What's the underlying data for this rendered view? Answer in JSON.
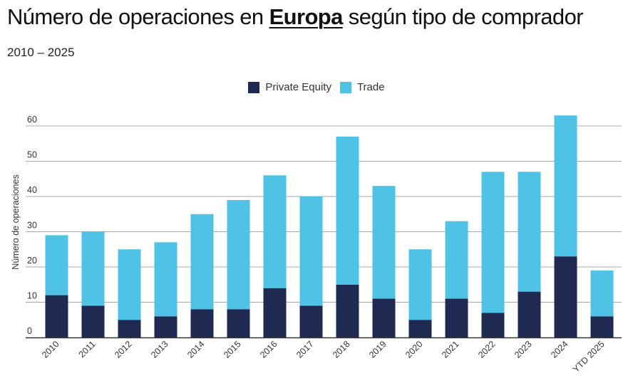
{
  "header": {
    "title_pre": "Número de operaciones en ",
    "title_highlight": "Europa",
    "title_post": " según tipo de comprador",
    "subtitle": "2010 – 2025"
  },
  "colors": {
    "private_equity": "#1f2a52",
    "trade": "#4fc3e6",
    "grid": "#a8a8a8",
    "axis": "#333333"
  },
  "chart_data": {
    "type": "bar",
    "stacked": true,
    "categories": [
      "2010",
      "2011",
      "2012",
      "2013",
      "2014",
      "2015",
      "2016",
      "2017",
      "2018",
      "2019",
      "2020",
      "2021",
      "2022",
      "2023",
      "2024",
      "YTD 2025"
    ],
    "series": [
      {
        "name": "Private Equity",
        "values": [
          12,
          9,
          5,
          6,
          8,
          8,
          14,
          9,
          15,
          11,
          5,
          11,
          7,
          13,
          23,
          6
        ]
      },
      {
        "name": "Trade",
        "values": [
          17,
          21,
          20,
          21,
          27,
          31,
          32,
          31,
          42,
          32,
          20,
          22,
          40,
          34,
          40,
          13
        ]
      }
    ],
    "ylabel": "Número de operaciones",
    "xlabel": "",
    "ylim": [
      0,
      63
    ],
    "yticks": [
      0,
      10,
      20,
      30,
      40,
      50,
      60
    ],
    "grid": true,
    "legend_position": "top-center"
  }
}
